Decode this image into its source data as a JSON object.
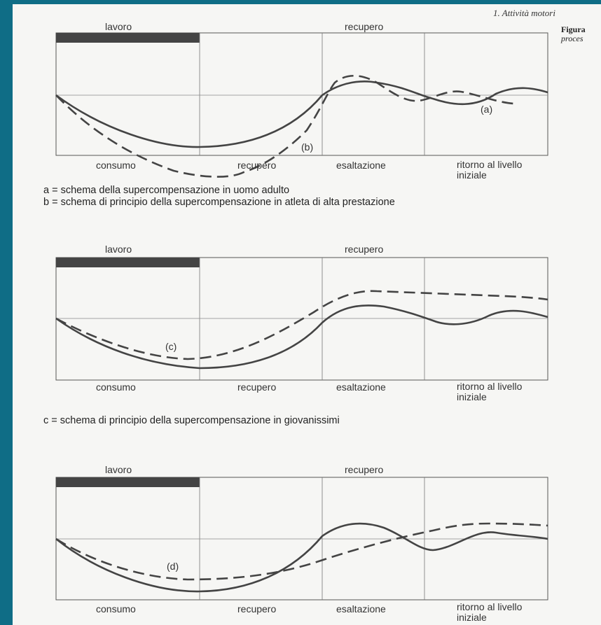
{
  "header": {
    "running_title": "1. Attività motori",
    "figure_label": "Figura",
    "figure_caption_fragment": "proces"
  },
  "panels": [
    {
      "labels": {
        "work": "lavoro",
        "recovery_top": "recupero",
        "phase_1": "consumo",
        "phase_2": "recupero",
        "phase_3": "esaltazione",
        "phase_4": "ritorno al livello iniziale"
      },
      "curve_labels": [
        "(a)",
        "(b)"
      ],
      "captions": [
        "a = schema della supercompensazione in uomo adulto",
        "b = schema di principio della supercompensazione in atleta di alta prestazione"
      ]
    },
    {
      "labels": {
        "work": "lavoro",
        "recovery_top": "recupero",
        "phase_1": "consumo",
        "phase_2": "recupero",
        "phase_3": "esaltazione",
        "phase_4": "ritorno al livello iniziale"
      },
      "curve_labels": [
        "(c)"
      ],
      "captions": [
        "c = schema di principio della supercompensazione in giovanissimi"
      ]
    },
    {
      "labels": {
        "work": "lavoro",
        "recovery_top": "recupero",
        "phase_1": "consumo",
        "phase_2": "recupero",
        "phase_3": "esaltazione",
        "phase_4": "ritorno al livello iniziale"
      },
      "curve_labels": [
        "(d)"
      ],
      "captions": []
    }
  ],
  "colors": {
    "frame_background": "#0f6d86",
    "page": "#f6f6f4",
    "ink": "#333333"
  }
}
